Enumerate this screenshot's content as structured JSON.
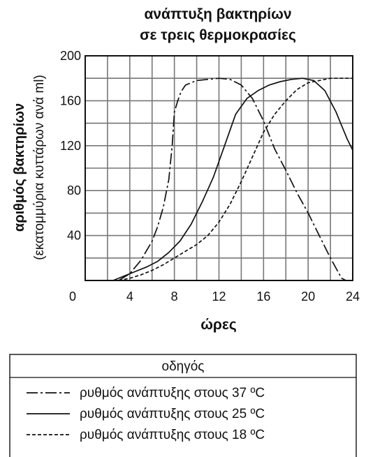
{
  "chart_data": {
    "type": "line",
    "title_lines": [
      "ανάπτυξη βακτηρίων",
      "σε τρεις θερμοκρασίες"
    ],
    "ylabel": "αριθμός βακτηρίων",
    "ylabel_sub": "(εκατομμύρια κυττάρων ανά ml)",
    "xlabel": "ώρες",
    "xlim": [
      0,
      24
    ],
    "ylim": [
      0,
      200
    ],
    "x_ticks": [
      0,
      4,
      8,
      12,
      16,
      20,
      24
    ],
    "y_ticks": [
      40,
      80,
      120,
      160,
      200
    ],
    "grid": true,
    "legend_placement": "bottom",
    "series": [
      {
        "name": "ρυθμός ανάπτυξης στους 37 ºC",
        "dash": "dash-dot",
        "x": [
          3.0,
          4.0,
          5.0,
          6.0,
          6.5,
          7.0,
          7.5,
          7.8,
          8.0,
          8.3,
          8.6,
          9.0,
          10.0,
          11.0,
          12.0,
          13.0,
          14.0,
          15.0,
          16.0,
          17.0,
          18.0,
          19.0,
          20.0,
          21.0,
          22.0,
          23.0,
          23.4
        ],
        "y": [
          0,
          6,
          18,
          35,
          48,
          65,
          90,
          120,
          150,
          160,
          168,
          174,
          178,
          179,
          180,
          179,
          174,
          162,
          142,
          117,
          98,
          78,
          60,
          40,
          20,
          2,
          0
        ]
      },
      {
        "name": "ρυθμός ανάπτυξης στους 25 ºC",
        "dash": "solid",
        "x": [
          2.5,
          3.5,
          4.5,
          5.5,
          6.5,
          7.5,
          8.5,
          9.5,
          10.5,
          11.5,
          12.5,
          13.5,
          14.5,
          15.5,
          16.5,
          17.5,
          18.5,
          19.5,
          20.5,
          21.5,
          22.5,
          23.0,
          23.5,
          24.0
        ],
        "y": [
          0,
          4,
          8,
          12,
          17,
          25,
          35,
          50,
          70,
          92,
          120,
          148,
          162,
          169,
          174,
          177,
          179,
          180,
          178,
          169,
          150,
          138,
          126,
          116
        ]
      },
      {
        "name": "ρυθμός ανάπτυξης στους 18 ºC",
        "dash": "dashed",
        "x": [
          3.0,
          4.0,
          5.0,
          6.0,
          7.0,
          8.0,
          9.0,
          10.0,
          11.0,
          12.0,
          13.0,
          14.0,
          15.0,
          16.0,
          17.0,
          18.0,
          19.0,
          20.0,
          21.0,
          22.0,
          23.0,
          24.0
        ],
        "y": [
          0,
          2,
          5,
          9,
          14,
          20,
          26,
          32,
          40,
          52,
          68,
          88,
          110,
          132,
          148,
          160,
          170,
          176,
          178,
          180,
          180,
          180
        ]
      }
    ]
  },
  "legend": {
    "title": "οδηγός"
  }
}
